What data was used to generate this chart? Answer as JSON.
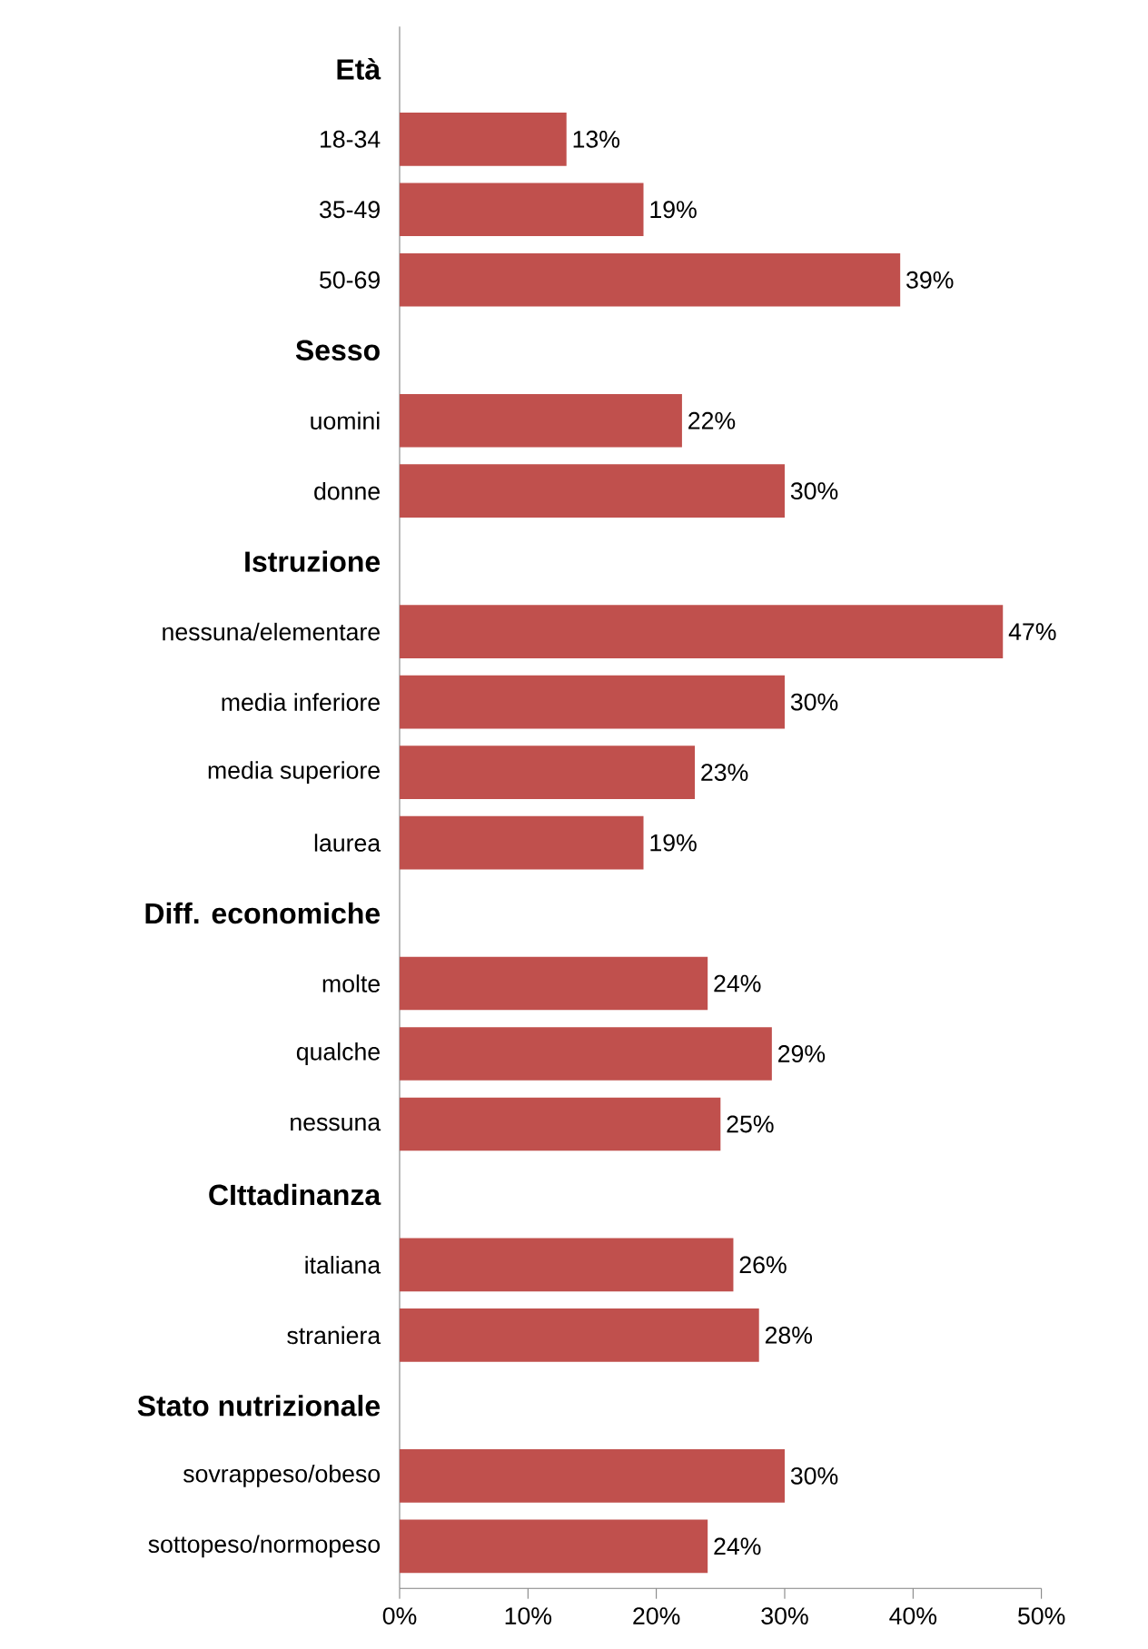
{
  "chart_data": {
    "type": "bar",
    "orientation": "horizontal",
    "color": "#c0504d",
    "categories": [
      "Età",
      "18-34",
      "35-49",
      "50-69",
      "Sesso",
      "uomini",
      "donne",
      "Istruzione",
      "nessuna/elementare",
      "media inferiore",
      "media superiore",
      "laurea",
      "Diff. economiche",
      "molte",
      "qualche",
      "nessuna",
      "CIttadinanza",
      "italiana",
      "straniera",
      "Stato nutrizionale",
      "sovrappeso/obeso",
      "sottopeso/normopeso"
    ],
    "values": [
      null,
      13,
      19,
      39,
      null,
      22,
      30,
      null,
      47,
      30,
      23,
      19,
      null,
      24,
      29,
      25,
      null,
      26,
      28,
      null,
      30,
      24
    ],
    "value_labels": [
      null,
      "13%",
      "19%",
      "39%",
      null,
      "22%",
      "30%",
      null,
      "47%",
      "30%",
      "23%",
      "19%",
      null,
      "24%",
      "29%",
      "25%",
      null,
      "26%",
      "28%",
      null,
      "30%",
      "24%"
    ],
    "xlim": [
      0,
      50
    ],
    "xticks": [
      {
        "value": 0,
        "label": "0%"
      },
      {
        "value": 10,
        "label": "10%"
      },
      {
        "value": 20,
        "label": "20%"
      },
      {
        "value": 30,
        "label": "30%"
      },
      {
        "value": 40,
        "label": "40%"
      },
      {
        "value": 50,
        "label": "50%"
      }
    ],
    "grid": false
  }
}
